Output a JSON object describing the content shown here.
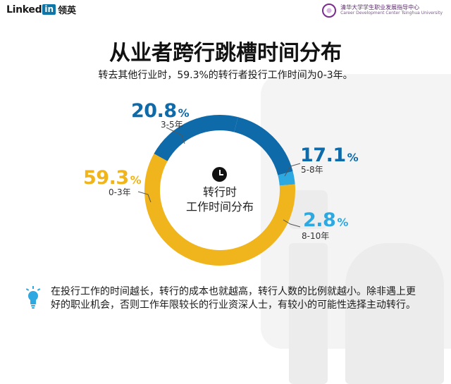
{
  "header": {
    "logo_word": "Linked",
    "logo_in": "in",
    "logo_cn": "领英",
    "university_cn": "清华大学学生职业发展指导中心",
    "university_en": "Career Development Center  Tsinghua University"
  },
  "title": "从业者跨行跳槽时间分布",
  "subtitle": "转去其他行业时，59.3%的转行者投行工作时间为0-3年。",
  "colors": {
    "blue": "#0f6aa9",
    "light_blue": "#2ea8e0",
    "gold": "#f0b41c"
  },
  "chart_data": {
    "type": "pie",
    "variant": "donut",
    "center_label": [
      "转行时",
      "工作时间分布"
    ],
    "slices": [
      {
        "label": "0-3年",
        "value": 59.3,
        "value_text": "59.3",
        "color": "#f0b41c"
      },
      {
        "label": "3-5年",
        "value": 20.8,
        "value_text": "20.8",
        "color": "#0f6aa9"
      },
      {
        "label": "5-8年",
        "value": 17.1,
        "value_text": "17.1",
        "color": "#0f6aa9"
      },
      {
        "label": "8-10年",
        "value": 2.8,
        "value_text": "2.8",
        "color": "#2ea8e0"
      }
    ],
    "percent_sign": "%"
  },
  "footer": {
    "icon": "lightbulb-icon",
    "text": "在投行工作的时间越长，转行的成本也就越高，转行人数的比例就越小。除非遇上更好的职业机会，否则工作年限较长的行业资深人士，有较小的可能性选择主动转行。"
  }
}
